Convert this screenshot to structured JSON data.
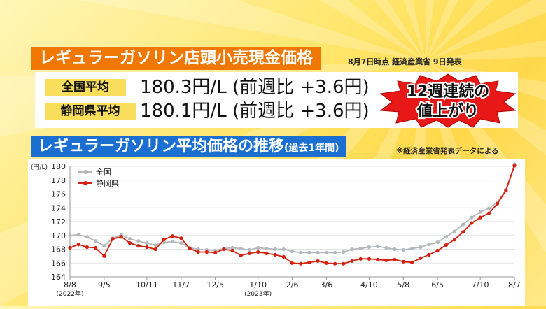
{
  "header": {
    "title": "レギュラーガソリン店頭小売現金価格",
    "as_of": "8月7日時点 経済産業省 9日発表"
  },
  "prices": [
    {
      "label": "全国平均",
      "price": "180.3円/L",
      "change": "(前週比 +3.6円)"
    },
    {
      "label": "静岡県平均",
      "price": "180.1円/L",
      "change": "(前週比 +3.6円)"
    }
  ],
  "callout": {
    "line1": "12週連続の",
    "line2": "値上がり"
  },
  "chart_section": {
    "title": "レギュラーガソリン平均価格の推移",
    "subtitle": "(過去1年間)",
    "source": "※経済産業省発表データによる"
  },
  "colors": {
    "national": "#b4b8bc",
    "shizuoka": "#d42010",
    "title_orange": "#f07800",
    "title_blue": "#1a6fd0"
  },
  "chart_data": {
    "type": "line",
    "ylabel": "(円/L)",
    "ylim": [
      164,
      180
    ],
    "yticks": [
      164,
      166,
      168,
      170,
      172,
      174,
      176,
      178,
      180
    ],
    "x_tick_labels": [
      "8/8",
      "9/5",
      "10/11",
      "11/7",
      "12/5",
      "1/10",
      "2/6",
      "3/6",
      "4/10",
      "5/8",
      "6/5",
      "7/10",
      "8/7"
    ],
    "x_tick_index": [
      0,
      4,
      9,
      13,
      17,
      22,
      26,
      30,
      35,
      39,
      43,
      48,
      52
    ],
    "year_labels": [
      {
        "at": "8/8",
        "text": "(2022年)"
      },
      {
        "at": "1/10",
        "text": "(2023年)"
      }
    ],
    "grid": true,
    "legend": "top-left",
    "series": [
      {
        "name": "全国",
        "color": "#b4b8bc",
        "values": [
          170.0,
          170.1,
          169.8,
          169.2,
          168.5,
          169.6,
          170.1,
          169.5,
          169.2,
          168.9,
          168.6,
          169.0,
          169.1,
          168.9,
          168.2,
          168.0,
          167.9,
          167.8,
          168.1,
          168.2,
          168.1,
          167.9,
          168.2,
          168.1,
          168.0,
          168.0,
          167.7,
          167.5,
          167.5,
          167.5,
          167.5,
          167.5,
          167.6,
          168.0,
          168.1,
          168.3,
          168.4,
          168.2,
          168.0,
          167.9,
          168.1,
          168.3,
          168.7,
          169.0,
          169.8,
          170.6,
          171.6,
          172.6,
          173.4,
          173.9,
          174.8,
          176.6,
          180.3
        ]
      },
      {
        "name": "静岡県",
        "color": "#d42010",
        "values": [
          168.2,
          168.7,
          168.3,
          168.2,
          167.0,
          169.5,
          169.8,
          168.9,
          168.5,
          168.3,
          168.0,
          169.4,
          169.9,
          169.6,
          168.1,
          167.6,
          167.6,
          167.5,
          168.0,
          167.8,
          167.1,
          167.4,
          167.6,
          167.4,
          167.2,
          166.9,
          166.0,
          165.9,
          166.1,
          166.3,
          166.0,
          165.9,
          165.9,
          166.3,
          166.6,
          166.6,
          166.5,
          166.4,
          166.5,
          166.2,
          166.1,
          166.7,
          167.2,
          167.8,
          168.6,
          169.4,
          170.5,
          171.8,
          172.6,
          173.2,
          174.6,
          176.5,
          180.1
        ]
      }
    ]
  }
}
